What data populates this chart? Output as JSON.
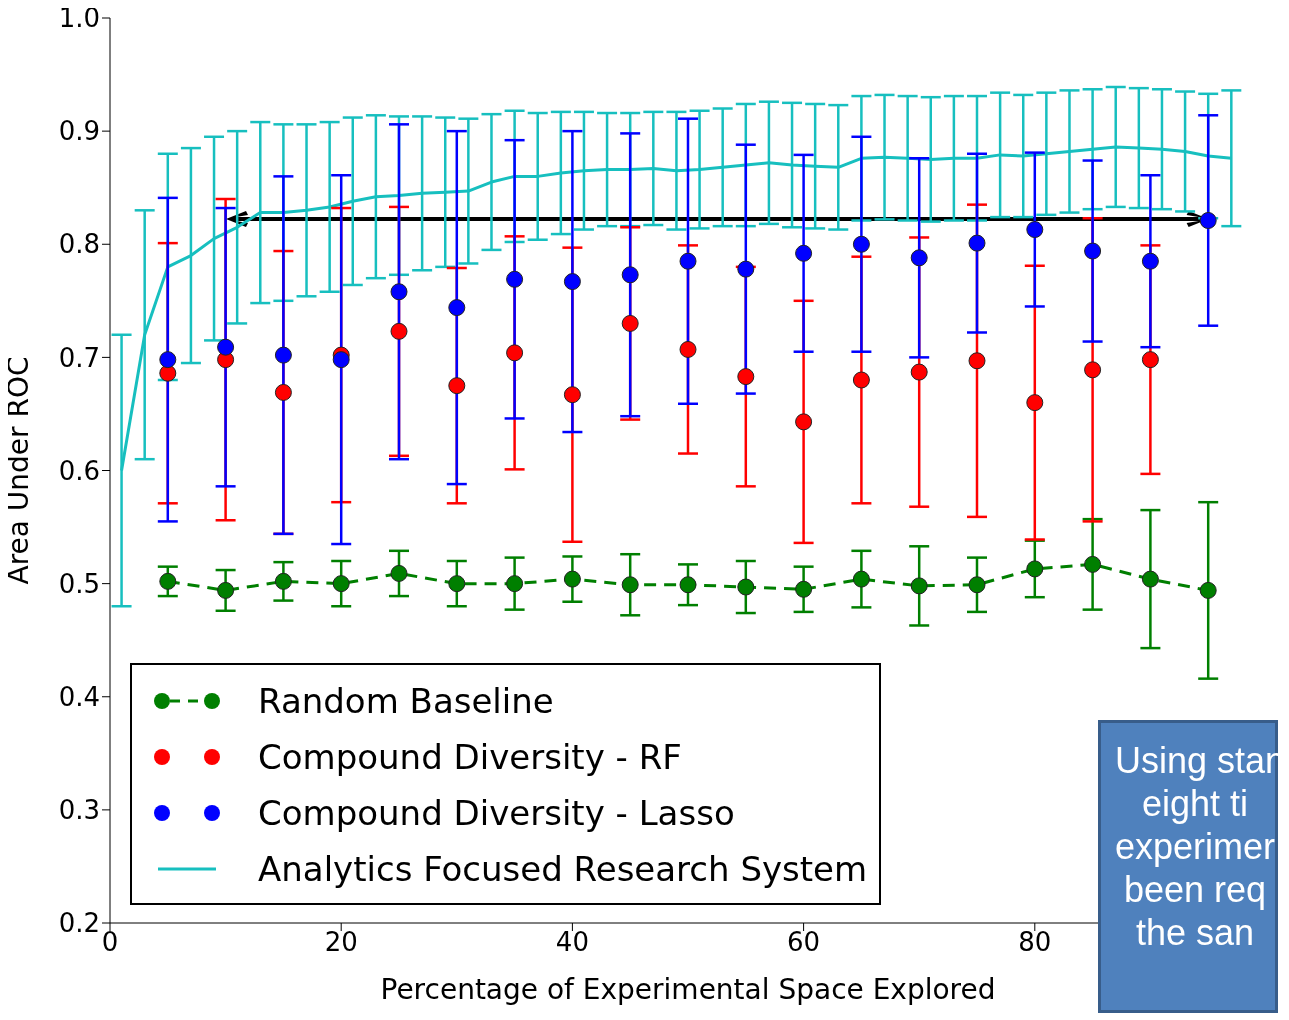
{
  "chart_data": {
    "type": "line",
    "xlabel": "Percentage of Experimental Space Explored",
    "ylabel": "Area Under ROC",
    "xlim": [
      0,
      100
    ],
    "xticks": [
      0,
      20,
      40,
      60,
      80
    ],
    "ylim": [
      0.2,
      1.0
    ],
    "yticks": [
      0.2,
      0.3,
      0.4,
      0.5,
      0.6,
      0.7,
      0.8,
      0.9,
      {
        "value": 1.0,
        "label": "1.0"
      }
    ],
    "legend": "bottom left",
    "annotations": [
      "Using stan\neight ti\nexperimer\nbeen req\nthe san"
    ],
    "series": [
      {
        "name": "Analytics Focused Research System",
        "color": "#17bfbf",
        "marker": "none",
        "line_style": "solid",
        "x": [
          1,
          3,
          5,
          7,
          9,
          11,
          13,
          15,
          17,
          19,
          21,
          23,
          25,
          27,
          29,
          31,
          33,
          35,
          37,
          39,
          41,
          43,
          45,
          47,
          49,
          51,
          53,
          55,
          57,
          59,
          61,
          63,
          65,
          67,
          69,
          71,
          73,
          75,
          77,
          79,
          81,
          83,
          85,
          87,
          89,
          91,
          93,
          95,
          97
        ],
        "values": [
          0.6,
          0.72,
          0.78,
          0.79,
          0.805,
          0.815,
          0.828,
          0.828,
          0.83,
          0.833,
          0.838,
          0.842,
          0.843,
          0.845,
          0.846,
          0.847,
          0.855,
          0.86,
          0.86,
          0.863,
          0.865,
          0.866,
          0.866,
          0.867,
          0.865,
          0.866,
          0.868,
          0.87,
          0.872,
          0.87,
          0.869,
          0.868,
          0.876,
          0.877,
          0.876,
          0.875,
          0.876,
          0.876,
          0.879,
          0.878,
          0.88,
          0.882,
          0.884,
          0.886,
          0.885,
          0.884,
          0.882,
          0.878,
          0.876
        ],
        "errors": [
          0.12,
          0.11,
          0.1,
          0.095,
          0.09,
          0.085,
          0.08,
          0.078,
          0.076,
          0.075,
          0.074,
          0.072,
          0.07,
          0.068,
          0.066,
          0.064,
          0.06,
          0.058,
          0.056,
          0.054,
          0.052,
          0.05,
          0.05,
          0.05,
          0.052,
          0.052,
          0.052,
          0.054,
          0.054,
          0.055,
          0.055,
          0.055,
          0.055,
          0.055,
          0.055,
          0.055,
          0.055,
          0.055,
          0.055,
          0.054,
          0.054,
          0.054,
          0.053,
          0.053,
          0.053,
          0.053,
          0.053,
          0.055,
          0.06
        ]
      },
      {
        "name": "Random Baseline",
        "color": "#007f00",
        "marker": "circle",
        "line_style": "dashed",
        "x": [
          5,
          10,
          15,
          20,
          25,
          30,
          35,
          40,
          45,
          50,
          55,
          60,
          65,
          70,
          75,
          80,
          85,
          90,
          95
        ],
        "values": [
          0.502,
          0.494,
          0.502,
          0.5,
          0.509,
          0.5,
          0.5,
          0.504,
          0.499,
          0.499,
          0.497,
          0.495,
          0.504,
          0.498,
          0.499,
          0.513,
          0.517,
          0.504,
          0.494
        ],
        "errors": [
          0.013,
          0.018,
          0.017,
          0.02,
          0.02,
          0.02,
          0.023,
          0.02,
          0.027,
          0.018,
          0.023,
          0.02,
          0.025,
          0.035,
          0.024,
          0.025,
          0.04,
          0.061,
          0.078
        ]
      },
      {
        "name": "Compound Diversity - RF",
        "type": "scatter",
        "color": "#ff0000",
        "marker": "circle",
        "x": [
          5,
          10,
          15,
          20,
          25,
          30,
          35,
          40,
          45,
          50,
          55,
          60,
          65,
          70,
          75,
          80,
          85,
          90
        ],
        "values": [
          0.686,
          0.698,
          0.669,
          0.702,
          0.723,
          0.675,
          0.704,
          0.667,
          0.73,
          0.707,
          0.683,
          0.643,
          0.68,
          0.687,
          0.697,
          0.66,
          0.689,
          0.698
        ],
        "errors": [
          0.115,
          0.142,
          0.125,
          0.13,
          0.11,
          0.104,
          0.103,
          0.13,
          0.085,
          0.092,
          0.097,
          0.107,
          0.109,
          0.119,
          0.138,
          0.121,
          0.134,
          0.101
        ]
      },
      {
        "name": "Compound Diversity - Lasso",
        "type": "scatter",
        "color": "#0000ff",
        "marker": "circle",
        "x": [
          5,
          10,
          15,
          20,
          25,
          30,
          35,
          40,
          45,
          50,
          55,
          60,
          65,
          70,
          75,
          80,
          85,
          90,
          95
        ],
        "values": [
          0.698,
          0.709,
          0.702,
          0.698,
          0.758,
          0.744,
          0.769,
          0.767,
          0.773,
          0.785,
          0.778,
          0.792,
          0.8,
          0.788,
          0.801,
          0.813,
          0.794,
          0.785,
          0.821
        ],
        "errors": [
          0.143,
          0.123,
          0.158,
          0.163,
          0.148,
          0.156,
          0.123,
          0.133,
          0.125,
          0.126,
          0.11,
          0.087,
          0.095,
          0.088,
          0.079,
          0.068,
          0.08,
          0.076,
          0.093
        ]
      }
    ]
  }
}
